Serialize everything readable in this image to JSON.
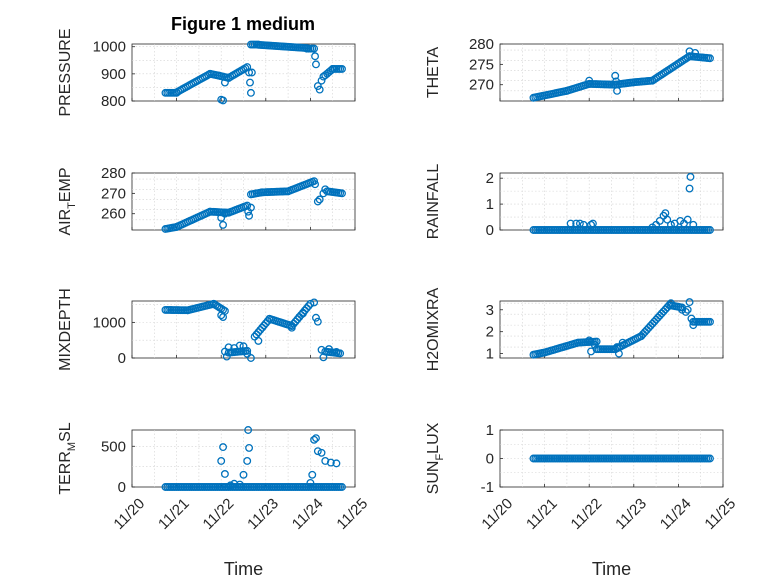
{
  "figure": {
    "title": "Figure 1 medium",
    "xlabel": "Time",
    "xticks": [
      "11/20",
      "11/21",
      "11/22",
      "11/23",
      "11/24",
      "11/25"
    ],
    "marker_color": "#0072BD",
    "marker": "circle"
  },
  "chart_data": [
    {
      "type": "scatter",
      "ylabel": "PRESSURE",
      "xlim": [
        "2020-11-20",
        "2020-11-25"
      ],
      "ylim": [
        800,
        1010
      ],
      "yticks": [
        800,
        900,
        1000
      ],
      "yticklabels": [
        "800",
        "900",
        "1000"
      ],
      "grid": true,
      "segments": [
        {
          "from": "2020-11-20T18:00",
          "to": "2020-11-21T00:00",
          "y0": 830,
          "y1": 830
        },
        {
          "from": "2020-11-21T00:00",
          "to": "2020-11-21T18:00",
          "y0": 832,
          "y1": 900
        },
        {
          "from": "2020-11-21T18:00",
          "to": "2020-11-21T23:00",
          "y0": 900,
          "y1": 893
        },
        {
          "from": "2020-11-21T23:00",
          "to": "2020-11-22T04:00",
          "y0": 893,
          "y1": 885
        },
        {
          "from": "2020-11-22T04:00",
          "to": "2020-11-22T14:00",
          "y0": 885,
          "y1": 925
        },
        {
          "from": "2020-11-22T16:00",
          "to": "2020-11-22T20:00",
          "y0": 1008,
          "y1": 1008
        },
        {
          "from": "2020-11-22T20:00",
          "to": "2020-11-23T22:00",
          "y0": 1007,
          "y1": 995
        },
        {
          "from": "2020-11-23T22:00",
          "to": "2020-11-24T02:00",
          "y0": 993,
          "y1": 993
        },
        {
          "from": "2020-11-24T08:00",
          "to": "2020-11-24T12:00",
          "y0": 895,
          "y1": 918
        },
        {
          "from": "2020-11-24T12:00",
          "to": "2020-11-24T17:00",
          "y0": 918,
          "y1": 918
        }
      ],
      "points": [
        {
          "t": "2020-11-22T00:00",
          "y": 805
        },
        {
          "t": "2020-11-22T01:00",
          "y": 802
        },
        {
          "t": "2020-11-22T02:00",
          "y": 868
        },
        {
          "t": "2020-11-22T15:00",
          "y": 905
        },
        {
          "t": "2020-11-22T15:30",
          "y": 868
        },
        {
          "t": "2020-11-22T16:00",
          "y": 830
        },
        {
          "t": "2020-11-22T16:30",
          "y": 905
        },
        {
          "t": "2020-11-24T02:30",
          "y": 965
        },
        {
          "t": "2020-11-24T03:00",
          "y": 935
        },
        {
          "t": "2020-11-24T04:00",
          "y": 855
        },
        {
          "t": "2020-11-24T05:00",
          "y": 842
        },
        {
          "t": "2020-11-24T06:00",
          "y": 875
        },
        {
          "t": "2020-11-24T07:00",
          "y": 890
        }
      ]
    },
    {
      "type": "scatter",
      "ylabel": "THETA",
      "xlim": [
        "2020-11-20",
        "2020-11-25"
      ],
      "ylim": [
        266,
        280
      ],
      "yticks": [
        270,
        275,
        280
      ],
      "yticklabels": [
        "270",
        "275",
        "280"
      ],
      "grid": true,
      "segments": [
        {
          "from": "2020-11-20T18:00",
          "to": "2020-11-21T12:00",
          "y0": 266.8,
          "y1": 268.5
        },
        {
          "from": "2020-11-21T12:00",
          "to": "2020-11-22T00:00",
          "y0": 268.5,
          "y1": 270.2
        },
        {
          "from": "2020-11-22T00:00",
          "to": "2020-11-22T14:00",
          "y0": 270.2,
          "y1": 270
        },
        {
          "from": "2020-11-22T14:00",
          "to": "2020-11-23T00:00",
          "y0": 270,
          "y1": 270.6
        },
        {
          "from": "2020-11-23T00:00",
          "to": "2020-11-23T10:00",
          "y0": 270.6,
          "y1": 271
        },
        {
          "from": "2020-11-23T10:00",
          "to": "2020-11-24T06:00",
          "y0": 271,
          "y1": 277
        },
        {
          "from": "2020-11-24T06:00",
          "to": "2020-11-24T17:00",
          "y0": 277,
          "y1": 276.5
        }
      ],
      "points": [
        {
          "t": "2020-11-22T00:00",
          "y": 271
        },
        {
          "t": "2020-11-22T14:00",
          "y": 272.2
        },
        {
          "t": "2020-11-22T14:30",
          "y": 270.8
        },
        {
          "t": "2020-11-22T15:00",
          "y": 268.5
        },
        {
          "t": "2020-11-24T06:00",
          "y": 278.2
        },
        {
          "t": "2020-11-24T09:00",
          "y": 277.8
        }
      ]
    },
    {
      "type": "scatter",
      "ylabel": "AIR_TEMP",
      "ylabel_sub": "T",
      "xlim": [
        "2020-11-20",
        "2020-11-25"
      ],
      "ylim": [
        252,
        280
      ],
      "yticks": [
        260,
        270,
        280
      ],
      "yticklabels": [
        "260",
        "270",
        "280"
      ],
      "grid": true,
      "segments": [
        {
          "from": "2020-11-20T18:00",
          "to": "2020-11-21T00:00",
          "y0": 252.5,
          "y1": 253.5
        },
        {
          "from": "2020-11-21T00:00",
          "to": "2020-11-21T18:00",
          "y0": 253.5,
          "y1": 261
        },
        {
          "from": "2020-11-21T18:00",
          "to": "2020-11-22T04:00",
          "y0": 261,
          "y1": 260.5
        },
        {
          "from": "2020-11-22T04:00",
          "to": "2020-11-22T14:00",
          "y0": 260.5,
          "y1": 264
        },
        {
          "from": "2020-11-22T16:00",
          "to": "2020-11-22T22:00",
          "y0": 269.5,
          "y1": 270.5
        },
        {
          "from": "2020-11-22T22:00",
          "to": "2020-11-23T12:00",
          "y0": 270.5,
          "y1": 271
        },
        {
          "from": "2020-11-23T12:00",
          "to": "2020-11-24T02:00",
          "y0": 271,
          "y1": 276
        },
        {
          "from": "2020-11-24T09:00",
          "to": "2020-11-24T17:00",
          "y0": 271,
          "y1": 270
        }
      ],
      "points": [
        {
          "t": "2020-11-22T00:00",
          "y": 258
        },
        {
          "t": "2020-11-22T01:00",
          "y": 254.5
        },
        {
          "t": "2020-11-22T02:00",
          "y": 260
        },
        {
          "t": "2020-11-22T14:30",
          "y": 261
        },
        {
          "t": "2020-11-22T15:00",
          "y": 259
        },
        {
          "t": "2020-11-22T16:00",
          "y": 263
        },
        {
          "t": "2020-11-24T02:30",
          "y": 274.5
        },
        {
          "t": "2020-11-24T04:00",
          "y": 266
        },
        {
          "t": "2020-11-24T05:00",
          "y": 267
        },
        {
          "t": "2020-11-24T07:00",
          "y": 270
        },
        {
          "t": "2020-11-24T08:00",
          "y": 272
        }
      ]
    },
    {
      "type": "scatter",
      "ylabel": "RAINFALL",
      "xlim": [
        "2020-11-20",
        "2020-11-25"
      ],
      "ylim": [
        0,
        2.2
      ],
      "yticks": [
        0,
        1,
        2
      ],
      "yticklabels": [
        "0",
        "1",
        "2"
      ],
      "grid": true,
      "segments": [
        {
          "from": "2020-11-20T18:00",
          "to": "2020-11-24T17:00",
          "y0": 0,
          "y1": 0
        }
      ],
      "points": [
        {
          "t": "2020-11-21T14:00",
          "y": 0.25
        },
        {
          "t": "2020-11-21T17:00",
          "y": 0.25
        },
        {
          "t": "2020-11-21T19:00",
          "y": 0.25
        },
        {
          "t": "2020-11-21T21:00",
          "y": 0.2
        },
        {
          "t": "2020-11-22T01:00",
          "y": 0.2
        },
        {
          "t": "2020-11-22T02:00",
          "y": 0.25
        },
        {
          "t": "2020-11-23T10:00",
          "y": 0.1
        },
        {
          "t": "2020-11-23T12:00",
          "y": 0.2
        },
        {
          "t": "2020-11-23T14:00",
          "y": 0.35
        },
        {
          "t": "2020-11-23T16:00",
          "y": 0.55
        },
        {
          "t": "2020-11-23T17:00",
          "y": 0.65
        },
        {
          "t": "2020-11-23T18:00",
          "y": 0.4
        },
        {
          "t": "2020-11-23T20:00",
          "y": 0.2
        },
        {
          "t": "2020-11-23T22:00",
          "y": 0.25
        },
        {
          "t": "2020-11-24T01:00",
          "y": 0.35
        },
        {
          "t": "2020-11-24T03:00",
          "y": 0.25
        },
        {
          "t": "2020-11-24T05:00",
          "y": 0.4
        },
        {
          "t": "2020-11-24T06:00",
          "y": 1.6
        },
        {
          "t": "2020-11-24T06:30",
          "y": 2.05
        },
        {
          "t": "2020-11-24T08:00",
          "y": 0.2
        }
      ]
    },
    {
      "type": "scatter",
      "ylabel": "MIXDEPTH",
      "xlim": [
        "2020-11-20",
        "2020-11-25"
      ],
      "ylim": [
        0,
        1600
      ],
      "yticks": [
        0,
        1000
      ],
      "yticklabels": [
        "0",
        "1000"
      ],
      "grid": true,
      "segments": [
        {
          "from": "2020-11-20T18:00",
          "to": "2020-11-21T06:00",
          "y0": 1350,
          "y1": 1340
        },
        {
          "from": "2020-11-21T06:00",
          "to": "2020-11-21T20:00",
          "y0": 1340,
          "y1": 1520
        },
        {
          "from": "2020-11-21T20:00",
          "to": "2020-11-22T02:00",
          "y0": 1520,
          "y1": 1320
        },
        {
          "from": "2020-11-22T04:00",
          "to": "2020-11-22T14:00",
          "y0": 150,
          "y1": 200
        },
        {
          "from": "2020-11-22T18:00",
          "to": "2020-11-23T02:00",
          "y0": 600,
          "y1": 1100
        },
        {
          "from": "2020-11-23T02:00",
          "to": "2020-11-23T14:00",
          "y0": 1100,
          "y1": 900
        },
        {
          "from": "2020-11-23T14:00",
          "to": "2020-11-24T00:00",
          "y0": 900,
          "y1": 1520
        },
        {
          "from": "2020-11-24T08:00",
          "to": "2020-11-24T16:00",
          "y0": 180,
          "y1": 130
        }
      ],
      "points": [
        {
          "t": "2020-11-22T00:00",
          "y": 1200
        },
        {
          "t": "2020-11-22T01:00",
          "y": 1150
        },
        {
          "t": "2020-11-22T02:00",
          "y": 180
        },
        {
          "t": "2020-11-22T03:00",
          "y": 40
        },
        {
          "t": "2020-11-22T04:00",
          "y": 300
        },
        {
          "t": "2020-11-22T07:00",
          "y": 280
        },
        {
          "t": "2020-11-22T10:00",
          "y": 350
        },
        {
          "t": "2020-11-22T12:00",
          "y": 330
        },
        {
          "t": "2020-11-22T14:00",
          "y": 120
        },
        {
          "t": "2020-11-22T16:00",
          "y": 0
        },
        {
          "t": "2020-11-22T20:00",
          "y": 480
        },
        {
          "t": "2020-11-23T14:00",
          "y": 850
        },
        {
          "t": "2020-11-23T18:00",
          "y": 1150
        },
        {
          "t": "2020-11-23T20:00",
          "y": 1250
        },
        {
          "t": "2020-11-24T02:00",
          "y": 1560
        },
        {
          "t": "2020-11-24T03:00",
          "y": 1130
        },
        {
          "t": "2020-11-24T04:00",
          "y": 1020
        },
        {
          "t": "2020-11-24T06:00",
          "y": 230
        },
        {
          "t": "2020-11-24T07:00",
          "y": 20
        },
        {
          "t": "2020-11-24T10:00",
          "y": 250
        },
        {
          "t": "2020-11-24T14:00",
          "y": 170
        }
      ]
    },
    {
      "type": "scatter",
      "ylabel": "H2OMIXRA",
      "xlim": [
        "2020-11-20",
        "2020-11-25"
      ],
      "ylim": [
        0.8,
        3.4
      ],
      "yticks": [
        1,
        2,
        3
      ],
      "yticklabels": [
        "1",
        "2",
        "3"
      ],
      "grid": true,
      "segments": [
        {
          "from": "2020-11-20T18:00",
          "to": "2020-11-21T00:00",
          "y0": 0.95,
          "y1": 1.05
        },
        {
          "from": "2020-11-21T00:00",
          "to": "2020-11-21T18:00",
          "y0": 1.05,
          "y1": 1.5
        },
        {
          "from": "2020-11-21T18:00",
          "to": "2020-11-22T04:00",
          "y0": 1.5,
          "y1": 1.55
        },
        {
          "from": "2020-11-22T04:00",
          "to": "2020-11-22T14:00",
          "y0": 1.2,
          "y1": 1.2
        },
        {
          "from": "2020-11-22T14:00",
          "to": "2020-11-23T04:00",
          "y0": 1.2,
          "y1": 1.8
        },
        {
          "from": "2020-11-23T04:00",
          "to": "2020-11-23T20:00",
          "y0": 1.8,
          "y1": 3.3
        },
        {
          "from": "2020-11-23T20:00",
          "to": "2020-11-24T02:00",
          "y0": 3.2,
          "y1": 3.1
        },
        {
          "from": "2020-11-24T08:00",
          "to": "2020-11-24T17:00",
          "y0": 2.45,
          "y1": 2.45
        }
      ],
      "points": [
        {
          "t": "2020-11-22T00:00",
          "y": 1.6
        },
        {
          "t": "2020-11-22T01:00",
          "y": 1.1
        },
        {
          "t": "2020-11-22T03:00",
          "y": 1.4
        },
        {
          "t": "2020-11-22T15:00",
          "y": 1.3
        },
        {
          "t": "2020-11-22T16:00",
          "y": 1.0
        },
        {
          "t": "2020-11-22T18:00",
          "y": 1.5
        },
        {
          "t": "2020-11-24T02:00",
          "y": 3.0
        },
        {
          "t": "2020-11-24T04:00",
          "y": 2.9
        },
        {
          "t": "2020-11-24T05:00",
          "y": 3.0
        },
        {
          "t": "2020-11-24T06:00",
          "y": 3.35
        },
        {
          "t": "2020-11-24T07:00",
          "y": 2.6
        },
        {
          "t": "2020-11-24T08:00",
          "y": 2.3
        }
      ]
    },
    {
      "type": "scatter",
      "ylabel": "TERR_MSL",
      "ylabel_sub": "M",
      "xlim": [
        "2020-11-20",
        "2020-11-25"
      ],
      "ylim": [
        0,
        700
      ],
      "yticks": [
        0,
        500
      ],
      "yticklabels": [
        "0",
        "500"
      ],
      "grid": true,
      "segments": [
        {
          "from": "2020-11-20T18:00",
          "to": "2020-11-24T17:00",
          "y0": 0,
          "y1": 0
        }
      ],
      "points": [
        {
          "t": "2020-11-22T00:00",
          "y": 320
        },
        {
          "t": "2020-11-22T01:00",
          "y": 490
        },
        {
          "t": "2020-11-22T02:00",
          "y": 160
        },
        {
          "t": "2020-11-22T05:00",
          "y": 20
        },
        {
          "t": "2020-11-22T07:00",
          "y": 40
        },
        {
          "t": "2020-11-22T10:00",
          "y": 30
        },
        {
          "t": "2020-11-22T12:00",
          "y": 150
        },
        {
          "t": "2020-11-22T14:00",
          "y": 320
        },
        {
          "t": "2020-11-22T14:30",
          "y": 700
        },
        {
          "t": "2020-11-22T15:00",
          "y": 480
        },
        {
          "t": "2020-11-24T00:00",
          "y": 50
        },
        {
          "t": "2020-11-24T01:00",
          "y": 150
        },
        {
          "t": "2020-11-24T02:00",
          "y": 580
        },
        {
          "t": "2020-11-24T03:00",
          "y": 600
        },
        {
          "t": "2020-11-24T04:00",
          "y": 440
        },
        {
          "t": "2020-11-24T06:00",
          "y": 420
        },
        {
          "t": "2020-11-24T08:00",
          "y": 320
        },
        {
          "t": "2020-11-24T11:00",
          "y": 300
        },
        {
          "t": "2020-11-24T14:00",
          "y": 290
        }
      ]
    },
    {
      "type": "scatter",
      "ylabel": "SUN_FLUX",
      "ylabel_sub": "F",
      "xlim": [
        "2020-11-20",
        "2020-11-25"
      ],
      "ylim": [
        -1,
        1
      ],
      "yticks": [
        -1,
        0,
        1
      ],
      "yticklabels": [
        "-1",
        "0",
        "1"
      ],
      "grid": true,
      "segments": [
        {
          "from": "2020-11-20T18:00",
          "to": "2020-11-24T17:00",
          "y0": 0,
          "y1": 0
        }
      ],
      "points": []
    }
  ]
}
